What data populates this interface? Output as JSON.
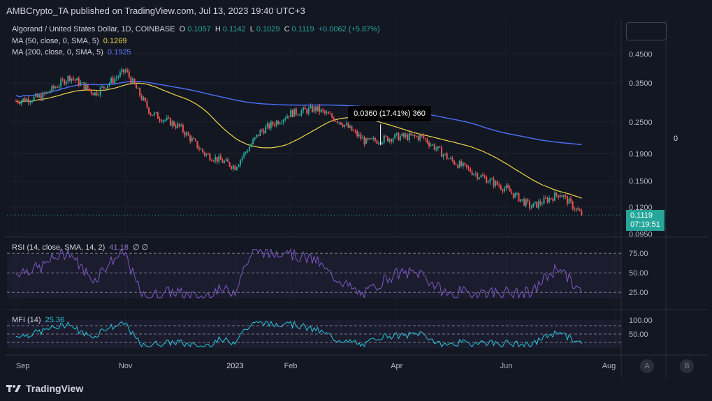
{
  "header": {
    "published": "AMBCrypto_TA published on TradingView.com, Jul 13, 2023 19:40 UTC+3"
  },
  "legend": {
    "main_title": "Algorand / United States Dollar, 1D, COINBASE",
    "ohlc": {
      "o_label": "O",
      "o": "0.1057",
      "h_label": "H",
      "h": "0.1142",
      "l_label": "L",
      "l": "0.1029",
      "c_label": "C",
      "c": "0.1119",
      "change": "+0.0062 (+5.87%)"
    },
    "ma50": {
      "label": "MA (50, close, 0, SMA, 5)",
      "value": "0.1269",
      "color": "#f0d64b"
    },
    "ma200": {
      "label": "MA (200, close, 0, SMA, 5)",
      "value": "0.1925",
      "color": "#4a6bf0"
    },
    "rsi": {
      "label": "RSI (14, close, SMA, 14, 2)",
      "value": "41.18",
      "extra": "∅ ∅"
    },
    "mfi": {
      "label": "MFI (14)",
      "value": "25.36"
    }
  },
  "price_axis": {
    "ticks": [
      "0.4500",
      "0.3500",
      "0.2500",
      "0.1900",
      "0.1500",
      "0.1200",
      "0.0950"
    ],
    "current_price": "0.1119",
    "countdown": "07:19:51",
    "zero_label": "0"
  },
  "rsi_axis": {
    "ticks": [
      "75.00",
      "50.00",
      "25.00"
    ]
  },
  "mfi_axis": {
    "ticks": [
      "100.00",
      "50.00"
    ]
  },
  "time_axis": {
    "ticks": [
      "Sep",
      "Nov",
      "2023",
      "Feb",
      "Apr",
      "Jun",
      "Aug"
    ]
  },
  "measure_tooltip": "0.0360 (17.41%) 360",
  "corner_buttons": [
    "A",
    "B"
  ],
  "footer": {
    "brand": "TradingView"
  },
  "colors": {
    "up": "#26a69a",
    "down": "#ef5350",
    "background": "#131722",
    "rsi_line": "#7e57c2",
    "mfi_line": "#26c6da"
  },
  "chart_data": {
    "type": "candlestick",
    "title": "Algorand / United States Dollar, 1D, COINBASE",
    "x": [
      "2022-09-01",
      "2022-09-15",
      "2022-10-01",
      "2022-10-15",
      "2022-11-01",
      "2022-11-15",
      "2022-12-01",
      "2022-12-15",
      "2023-01-01",
      "2023-01-15",
      "2023-02-01",
      "2023-02-15",
      "2023-03-01",
      "2023-03-15",
      "2023-04-01",
      "2023-04-15",
      "2023-05-01",
      "2023-05-15",
      "2023-06-01",
      "2023-06-15",
      "2023-07-01",
      "2023-07-13"
    ],
    "close": [
      0.3,
      0.31,
      0.37,
      0.32,
      0.39,
      0.27,
      0.24,
      0.19,
      0.17,
      0.23,
      0.27,
      0.28,
      0.25,
      0.21,
      0.22,
      0.22,
      0.18,
      0.16,
      0.14,
      0.12,
      0.135,
      0.1119
    ],
    "series": [
      {
        "name": "MA (50, close, 0, SMA, 5)",
        "last": 0.1269
      },
      {
        "name": "MA (200, close, 0, SMA, 5)",
        "last": 0.1925
      }
    ],
    "yscale": "log",
    "ylim": [
      0.09,
      0.55
    ]
  }
}
